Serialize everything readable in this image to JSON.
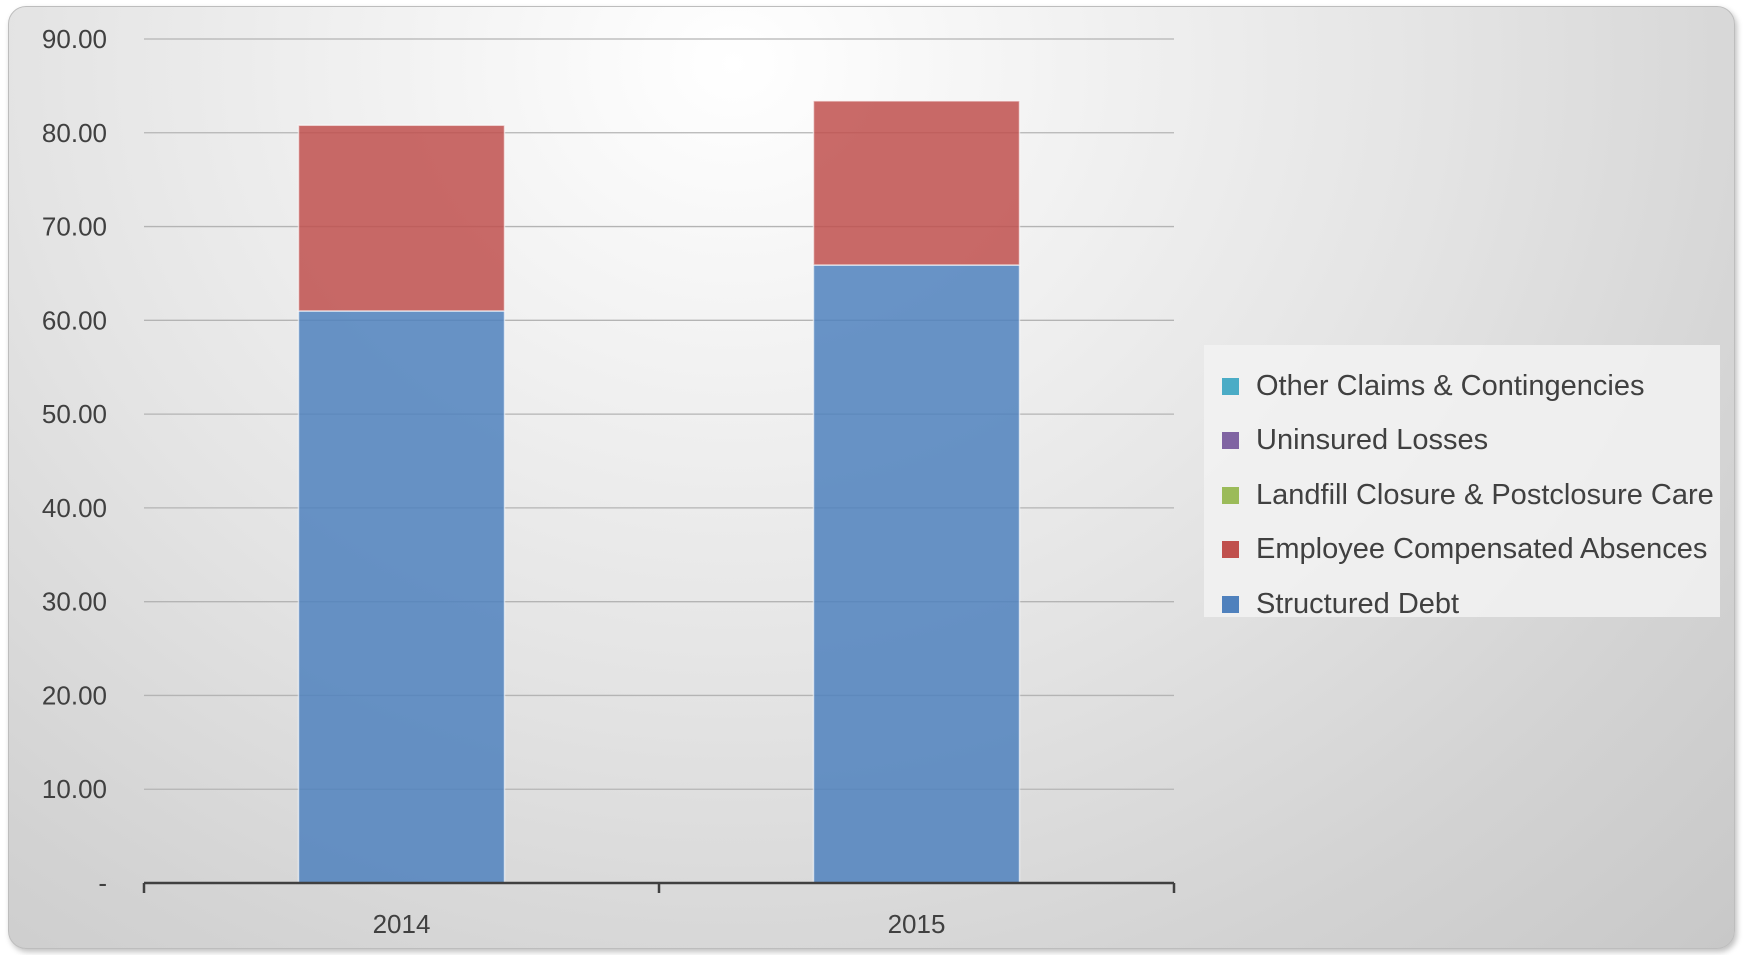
{
  "chart_data": {
    "type": "bar",
    "stacked": true,
    "categories": [
      "2014",
      "2015"
    ],
    "series": [
      {
        "name": "Structured Debt",
        "color": "#4f81bd",
        "values": [
          61.0,
          65.9
        ]
      },
      {
        "name": "Employee Compensated Absences",
        "color": "#c0504d",
        "values": [
          19.8,
          17.5
        ]
      },
      {
        "name": "Landfill Closure & Postclosure Care",
        "color": "#9bbb59",
        "values": [
          0,
          0
        ]
      },
      {
        "name": "Uninsured Losses",
        "color": "#8064a2",
        "values": [
          0,
          0
        ]
      },
      {
        "name": "Other Claims & Contingencies",
        "color": "#4bacc6",
        "values": [
          0,
          0
        ]
      }
    ],
    "ylim": [
      0,
      90
    ],
    "yticks": [
      0,
      10,
      20,
      30,
      40,
      50,
      60,
      70,
      80,
      90
    ],
    "ytick_labels": [
      "-",
      "10.00",
      "20.00",
      "30.00",
      "40.00",
      "50.00",
      "60.00",
      "70.00",
      "80.00",
      "90.00"
    ],
    "grid": true,
    "legend_position": "right",
    "legend_order": [
      "Other Claims & Contingencies",
      "Uninsured Losses",
      "Landfill Closure & Postclosure Care",
      "Employee Compensated Absences",
      "Structured Debt"
    ]
  }
}
